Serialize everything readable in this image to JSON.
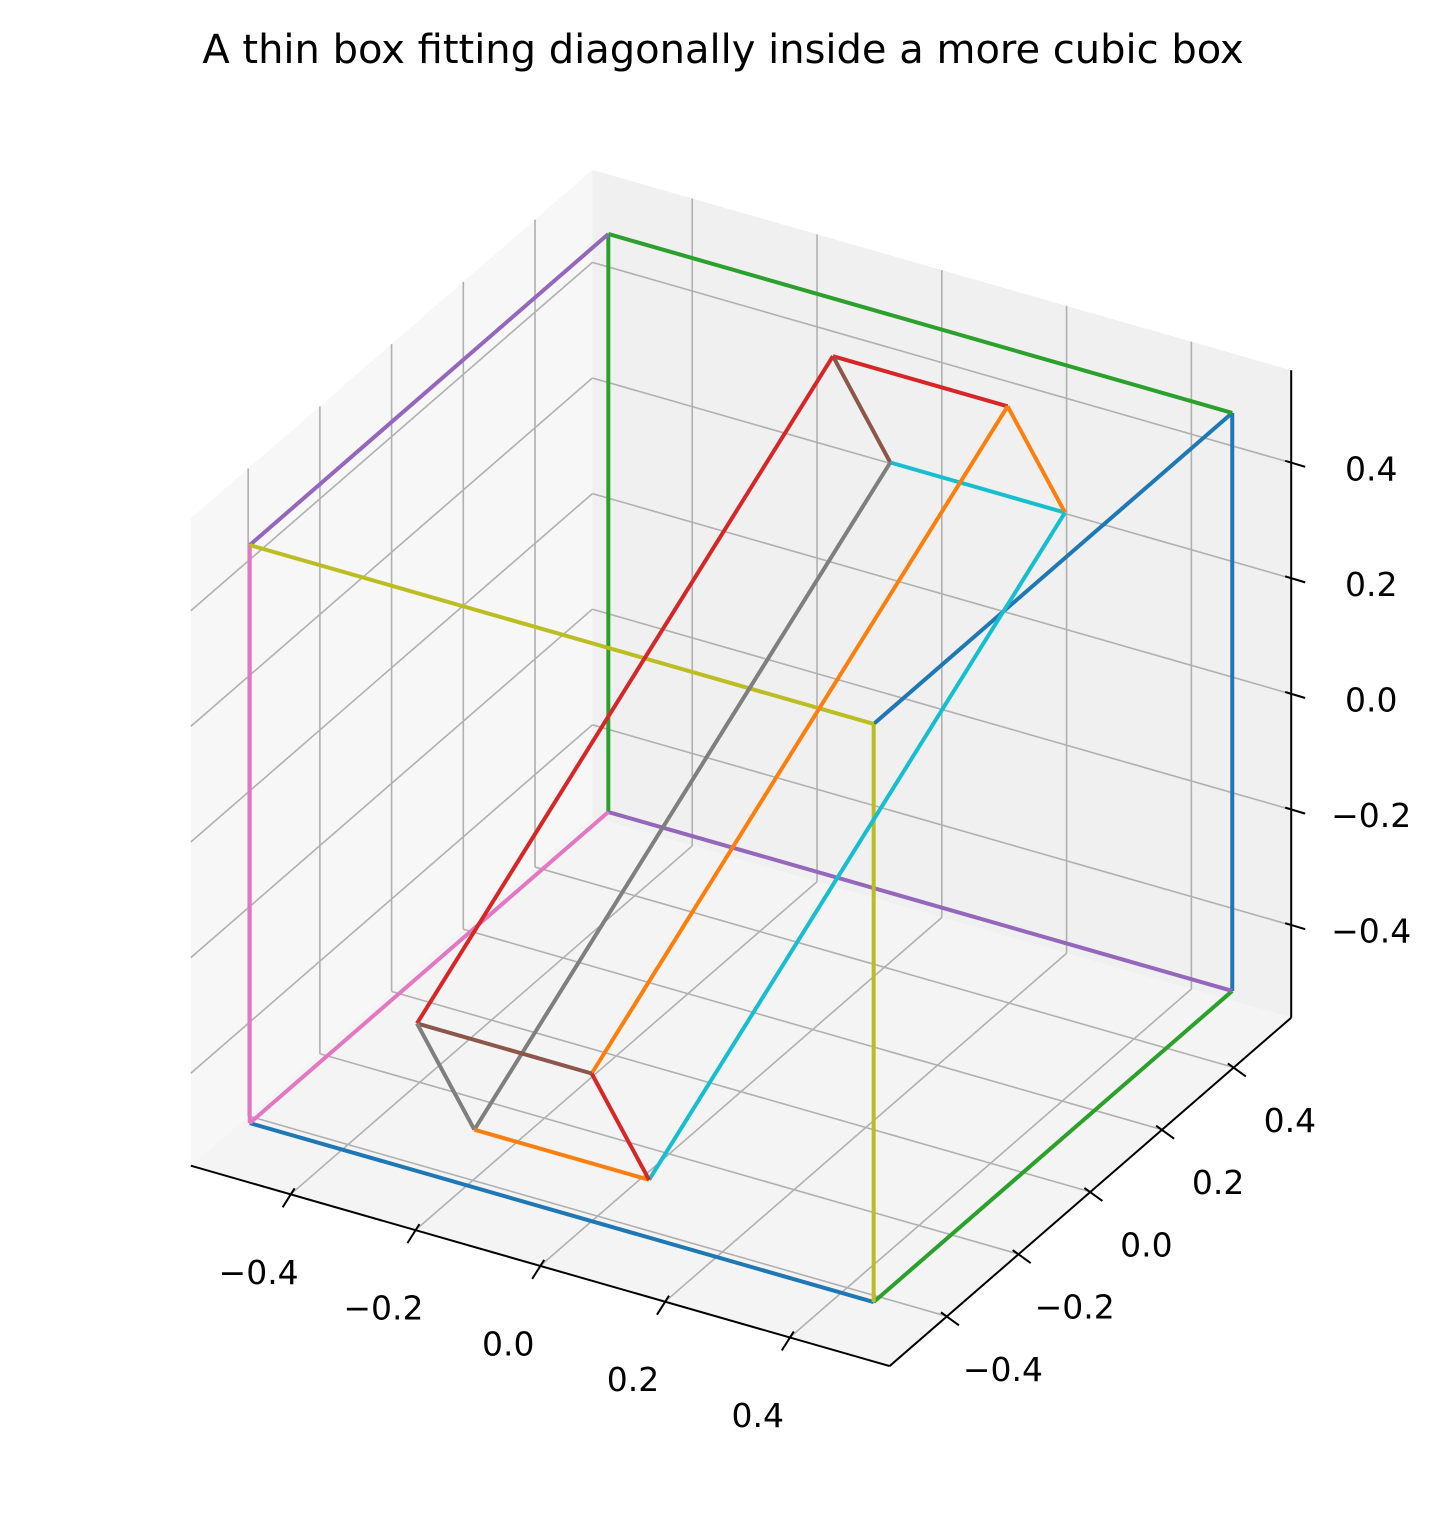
{
  "chart_data": {
    "type": "line3d",
    "title": "A thin box fitting diagonally inside a more cubic box",
    "xlim": [
      -0.56,
      0.56
    ],
    "ylim": [
      -0.56,
      0.56
    ],
    "zlim": [
      -0.56,
      0.56
    ],
    "xticks": [
      {
        "value": -0.4,
        "label": "−0.4"
      },
      {
        "value": -0.2,
        "label": "−0.2"
      },
      {
        "value": 0,
        "label": "0.0"
      },
      0.2,
      0.4
    ],
    "yticks": [
      {
        "value": -0.4,
        "label": "−0.4"
      },
      {
        "value": -0.2,
        "label": "−0.2"
      },
      {
        "value": 0,
        "label": "0.0"
      },
      0.2,
      0.4
    ],
    "zticks": [
      {
        "value": -0.4,
        "label": "−0.4"
      },
      {
        "value": -0.2,
        "label": "−0.2"
      },
      {
        "value": 0,
        "label": "0.0"
      },
      0.2,
      0.4
    ],
    "grid": true,
    "series": [
      {
        "color": "#1f77b4",
        "x": [
          -0.5,
          0.5
        ],
        "y": [
          -0.5,
          -0.5
        ],
        "z": [
          -0.5,
          -0.5
        ]
      },
      {
        "color": "#1f77b4",
        "x": [
          0.5,
          0.5
        ],
        "y": [
          -0.5,
          0.5
        ],
        "z": [
          0.5,
          0.5
        ]
      },
      {
        "color": "#1f77b4",
        "x": [
          0.5,
          0.5
        ],
        "y": [
          0.5,
          0.5
        ],
        "z": [
          0.5,
          -0.5
        ]
      },
      {
        "color": "#2ca02c",
        "x": [
          -0.5,
          0.5
        ],
        "y": [
          0.5,
          0.5
        ],
        "z": [
          0.5,
          0.5
        ]
      },
      {
        "color": "#2ca02c",
        "x": [
          -0.5,
          -0.5
        ],
        "y": [
          0.5,
          0.5
        ],
        "z": [
          0.5,
          -0.5
        ]
      },
      {
        "color": "#2ca02c",
        "x": [
          0.5,
          0.5
        ],
        "y": [
          -0.5,
          0.5
        ],
        "z": [
          -0.5,
          -0.5
        ]
      },
      {
        "color": "#9467bd",
        "x": [
          -0.5,
          -0.5
        ],
        "y": [
          -0.5,
          0.5
        ],
        "z": [
          0.5,
          0.5
        ]
      },
      {
        "color": "#9467bd",
        "x": [
          -0.5,
          0.5
        ],
        "y": [
          0.5,
          0.5
        ],
        "z": [
          -0.5,
          -0.5
        ]
      },
      {
        "color": "#e377c2",
        "x": [
          -0.5,
          -0.5
        ],
        "y": [
          -0.5,
          -0.5
        ],
        "z": [
          0.5,
          -0.5
        ]
      },
      {
        "color": "#e377c2",
        "x": [
          -0.5,
          -0.5
        ],
        "y": [
          -0.5,
          0.5
        ],
        "z": [
          -0.5,
          -0.5
        ]
      },
      {
        "color": "#bcbd22",
        "x": [
          -0.5,
          0.5
        ],
        "y": [
          -0.5,
          -0.5
        ],
        "z": [
          0.5,
          0.5
        ]
      },
      {
        "color": "#bcbd22",
        "x": [
          0.5,
          0.5
        ],
        "y": [
          -0.5,
          -0.5
        ],
        "z": [
          0.5,
          -0.5
        ]
      },
      {
        "color": "#d62728",
        "x": [
          -0.14,
          0.14
        ],
        "y": [
          0.5,
          0.5
        ],
        "z": [
          0.4,
          0.4
        ]
      },
      {
        "color": "#8c564b",
        "x": [
          -0.14,
          -0.14
        ],
        "y": [
          0.5,
          0.66
        ],
        "z": [
          0.4,
          0.13
        ]
      },
      {
        "color": "#17becf",
        "x": [
          -0.14,
          0.14
        ],
        "y": [
          0.66,
          0.66
        ],
        "z": [
          0.13,
          0.13
        ]
      },
      {
        "color": "#ff7f0e",
        "x": [
          0.14,
          0.14
        ],
        "y": [
          0.5,
          0.66
        ],
        "z": [
          0.4,
          0.13
        ]
      },
      {
        "color": "#d62728",
        "x": [
          -0.14,
          -0.14
        ],
        "y": [
          0.5,
          -0.66
        ],
        "z": [
          0.4,
          -0.13
        ]
      },
      {
        "color": "#7f7f7f",
        "x": [
          -0.14,
          -0.14
        ],
        "y": [
          0.66,
          -0.5
        ],
        "z": [
          0.13,
          -0.4
        ]
      },
      {
        "color": "#ff7f0e",
        "x": [
          0.14,
          0.14
        ],
        "y": [
          0.5,
          -0.66
        ],
        "z": [
          0.4,
          -0.13
        ]
      },
      {
        "color": "#17becf",
        "x": [
          0.14,
          0.14
        ],
        "y": [
          0.66,
          -0.5
        ],
        "z": [
          0.13,
          -0.4
        ]
      },
      {
        "color": "#8c564b",
        "x": [
          -0.14,
          0.14
        ],
        "y": [
          -0.66,
          -0.66
        ],
        "z": [
          -0.13,
          -0.13
        ]
      },
      {
        "color": "#7f7f7f",
        "x": [
          -0.14,
          -0.14
        ],
        "y": [
          -0.66,
          -0.5
        ],
        "z": [
          -0.13,
          -0.4
        ]
      },
      {
        "color": "#ff7f0e",
        "x": [
          -0.14,
          0.14
        ],
        "y": [
          -0.5,
          -0.5
        ],
        "z": [
          -0.4,
          -0.4
        ]
      },
      {
        "color": "#d62728",
        "x": [
          0.14,
          0.14
        ],
        "y": [
          -0.66,
          -0.5
        ],
        "z": [
          -0.13,
          -0.4
        ]
      }
    ]
  }
}
